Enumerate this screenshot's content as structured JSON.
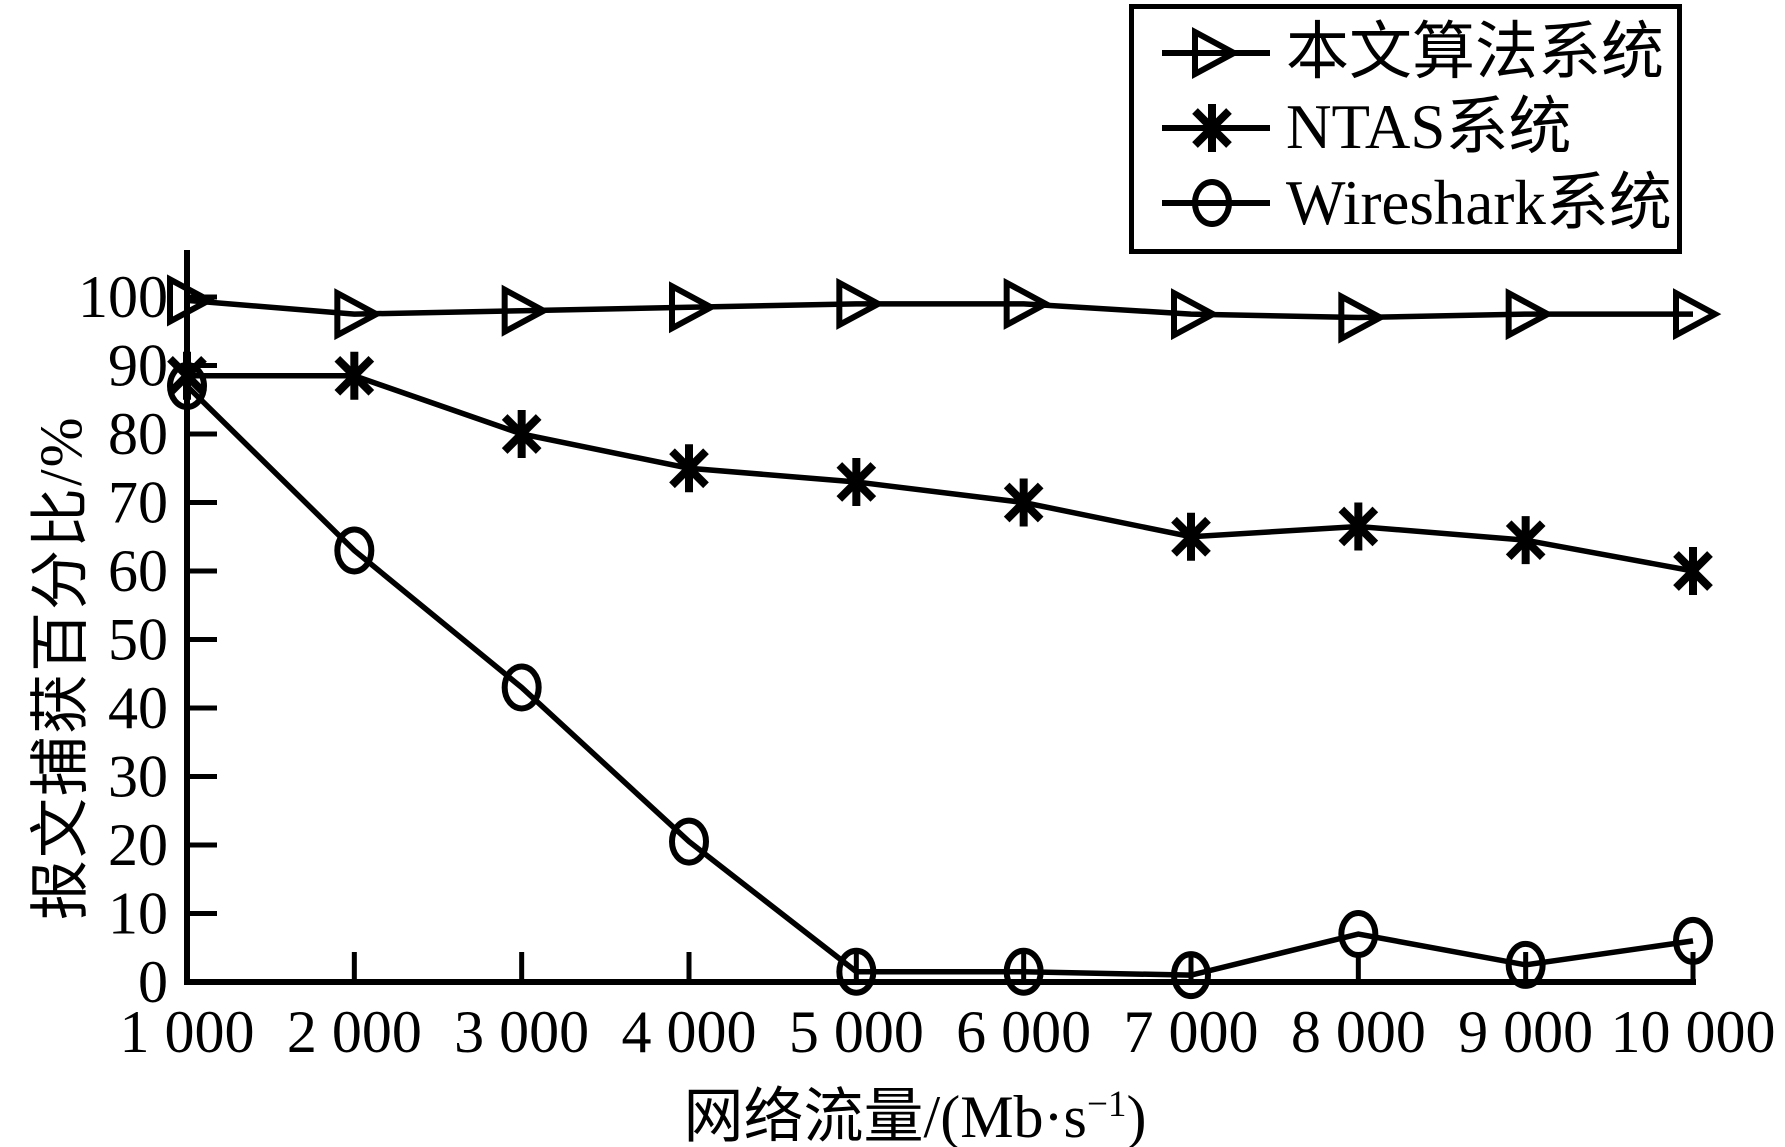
{
  "figure": {
    "background": "#ffffff",
    "ink": "#000000"
  },
  "chart_data": {
    "type": "line",
    "title": "",
    "x": [
      1000,
      2000,
      3000,
      4000,
      5000,
      6000,
      7000,
      8000,
      9000,
      10000
    ],
    "x_tick_labels": [
      "1 000",
      "2 000",
      "3 000",
      "4 000",
      "5 000",
      "6 000",
      "7 000",
      "8 000",
      "9 000",
      "10 000"
    ],
    "y_ticks": [
      0,
      10,
      20,
      30,
      40,
      50,
      60,
      70,
      80,
      90,
      100
    ],
    "y_tick_labels": [
      "0",
      "10",
      "20",
      "30",
      "40",
      "50",
      "60",
      "70",
      "80",
      "90",
      "100"
    ],
    "xlim": [
      1000,
      10000
    ],
    "ylim": [
      0,
      100
    ],
    "xlabel": "网络流量/(Mb·s−1)",
    "xlabel_parts": {
      "base": "网络流量/(Mb·s",
      "sup": "−1",
      "end": ")"
    },
    "ylabel": "报文捕获百分比/%",
    "grid": false,
    "legend_position": "top-right",
    "series": [
      {
        "name": "本文算法系统",
        "marker": "triangle-right",
        "color": "#000000",
        "values": [
          99.5,
          97.5,
          98,
          98.5,
          99,
          99,
          97.5,
          97,
          97.5,
          97.5
        ]
      },
      {
        "name": "NTAS系统",
        "marker": "asterisk",
        "color": "#000000",
        "values": [
          88.5,
          88.5,
          80,
          75,
          73,
          70,
          65,
          66.5,
          64.5,
          60
        ]
      },
      {
        "name": "Wireshark系统",
        "marker": "circle",
        "color": "#000000",
        "values": [
          87,
          63,
          43,
          20.5,
          1.5,
          1.5,
          1,
          7,
          2.5,
          6
        ]
      }
    ]
  }
}
